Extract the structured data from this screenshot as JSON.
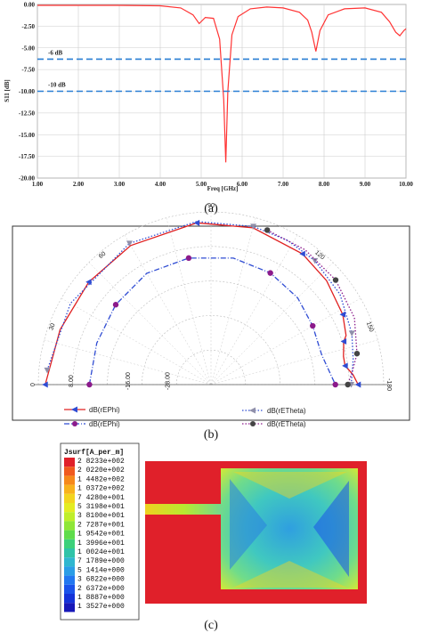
{
  "chart_data": [
    {
      "type": "line",
      "panel_caption": "(a)",
      "xlabel": "Freq [GHz]",
      "ylabel": "S11 [dB]",
      "xlim": [
        1.0,
        10.0
      ],
      "ylim": [
        -20.0,
        0.0
      ],
      "x_ticks": [
        "1.00",
        "2.00",
        "3.00",
        "4.00",
        "5.00",
        "6.00",
        "7.00",
        "8.00",
        "9.00",
        "10.00"
      ],
      "y_ticks": [
        "0.00",
        "-2.50",
        "-5.00",
        "-7.50",
        "-10.00",
        "-12.50",
        "-15.00",
        "-17.50",
        "-20.00"
      ],
      "grid": true,
      "series": [
        {
          "color": "#ff3333",
          "x": [
            1.0,
            2.0,
            3.0,
            4.0,
            4.5,
            4.8,
            4.95,
            5.1,
            5.3,
            5.45,
            5.55,
            5.6,
            5.65,
            5.75,
            5.9,
            6.2,
            6.6,
            7.0,
            7.4,
            7.6,
            7.7,
            7.8,
            7.9,
            8.1,
            8.5,
            9.0,
            9.4,
            9.6,
            9.75,
            9.85,
            9.95,
            10.0
          ],
          "y": [
            -0.1,
            -0.1,
            -0.1,
            -0.15,
            -0.4,
            -1.2,
            -2.2,
            -1.5,
            -1.6,
            -4.0,
            -11.0,
            -18.2,
            -10.0,
            -3.5,
            -1.4,
            -0.5,
            -0.3,
            -0.4,
            -0.9,
            -1.8,
            -3.2,
            -5.4,
            -3.0,
            -1.2,
            -0.5,
            -0.4,
            -0.9,
            -2.0,
            -3.2,
            -3.6,
            -3.0,
            -2.8
          ]
        }
      ],
      "reference_lines": [
        {
          "label": "-6 dB",
          "y": -6.3,
          "color": "#2a7fd4"
        },
        {
          "label": "-10 dB",
          "y": -10.0,
          "color": "#2a7fd4"
        }
      ]
    },
    {
      "type": "polar",
      "panel_caption": "(b)",
      "angle_ticks": [
        "90",
        "60",
        "120",
        "30",
        "150",
        "0",
        "-180"
      ],
      "radial_ticks": [
        "8.00",
        "-16.00",
        "-28.00"
      ],
      "series": [
        {
          "name": "dB(rEPhi)",
          "color": "#2f4cd3",
          "marker": "triangle-left",
          "line": "solid",
          "line_color": "#e02020",
          "points": [
            [
              180,
              8.0
            ],
            [
              160,
              6.5
            ],
            [
              140,
              6.2
            ],
            [
              120,
              6.5
            ],
            [
              95,
              7.0
            ],
            [
              75,
              7.0
            ],
            [
              55,
              6.2
            ],
            [
              42,
              5.0
            ],
            [
              28,
              3.2
            ],
            [
              20,
              1.6
            ],
            [
              18,
              0.4
            ],
            [
              12,
              -0.8
            ],
            [
              8,
              -0.8
            ],
            [
              4,
              1.2
            ],
            [
              0,
              2.6
            ]
          ]
        },
        {
          "name": "dB(rEPhi)",
          "color": "#8b1a8b",
          "marker": "circle",
          "line": "dashdot",
          "line_color": "#2f4cd3",
          "points": [
            [
              180,
              -4.8
            ],
            [
              160,
              -4.8
            ],
            [
              140,
              -4.0
            ],
            [
              120,
              -2.8
            ],
            [
              100,
              -2.8
            ],
            [
              80,
              -2.8
            ],
            [
              62,
              -3.4
            ],
            [
              45,
              -4.5
            ],
            [
              30,
              -6.0
            ],
            [
              15,
              -6.8
            ],
            [
              0,
              -4.0
            ]
          ]
        },
        {
          "name": "dB(rETheta)",
          "color": "#9090aa",
          "marker": "triangle-down",
          "line": "dotted",
          "line_color": "#2f4cd3",
          "points": [
            [
              175,
              7.6
            ],
            [
              150,
              7.0
            ],
            [
              120,
              7.2
            ],
            [
              95,
              7.4
            ],
            [
              75,
              7.4
            ],
            [
              62,
              7.3
            ],
            [
              50,
              6.8
            ],
            [
              35,
              5.6
            ],
            [
              20,
              3.4
            ],
            [
              10,
              1.8
            ],
            [
              0,
              0.6
            ]
          ]
        },
        {
          "name": "dB(rETheta)",
          "color": "#444444",
          "marker": "circle",
          "line": "dotted",
          "line_color": "#8b1a8b",
          "points": [
            [
              70,
              7.6
            ],
            [
              55,
              7.6
            ],
            [
              40,
              7.1
            ],
            [
              25,
              5.8
            ],
            [
              12,
              3.2
            ],
            [
              5,
              1.0
            ],
            [
              0,
              -0.4
            ]
          ]
        }
      ],
      "legend": [
        {
          "label": "dB(rEPhi)"
        },
        {
          "label": "dB(rEPhi)"
        },
        {
          "label": "dB(rETheta)"
        },
        {
          "label": "dB(rETheta)"
        }
      ]
    },
    {
      "type": "heatmap",
      "panel_caption": "(c)",
      "colorbar_title": "Jsurf[A_per_m]",
      "colorbar_labels": [
        "2 8233e+002",
        "2 0220e+002",
        "1 4482e+002",
        "1 0372e+002",
        "7 4280e+001",
        "5 3198e+001",
        "3 8100e+001",
        "2 7287e+001",
        "1 9542e+001",
        "1 3996e+001",
        "1 0024e+001",
        "7 1789e+000",
        "5 1414e+000",
        "3 6822e+000",
        "2 6372e+000",
        "1 8887e+000",
        "1 3527e+000"
      ],
      "colorbar_colors": [
        "#e0202a",
        "#f05a1e",
        "#f6891a",
        "#f8b21c",
        "#f3d41f",
        "#e4ec22",
        "#bfee2a",
        "#8fe637",
        "#5fdc4b",
        "#3dd07a",
        "#2fc3a8",
        "#2fb6cf",
        "#2a9de6",
        "#2277f0",
        "#1a52ea",
        "#1432d8",
        "#1718b8"
      ]
    }
  ]
}
